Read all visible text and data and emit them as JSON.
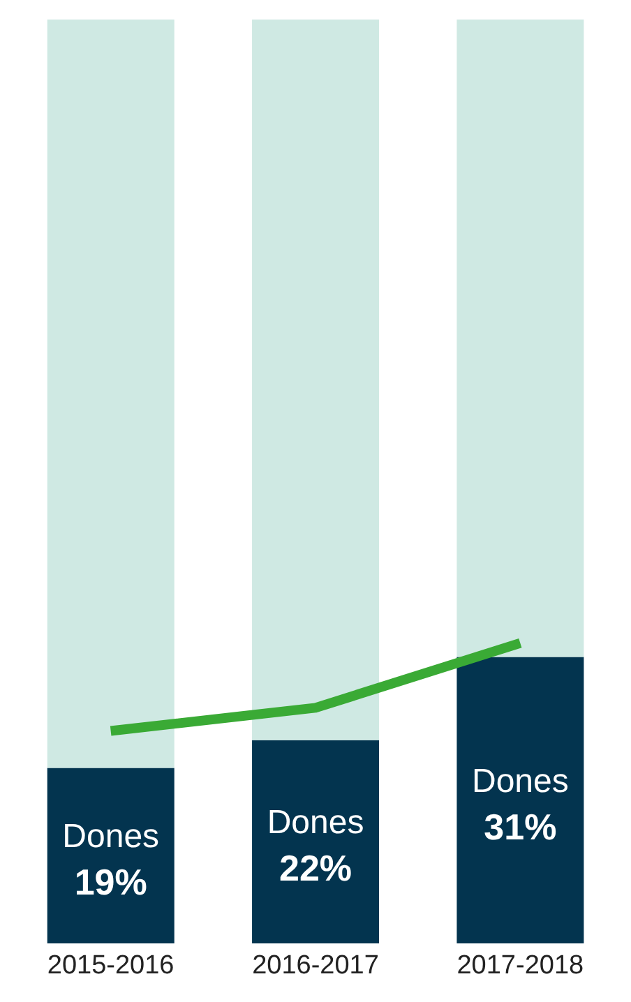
{
  "chart_data": {
    "type": "bar",
    "stacked": true,
    "categories": [
      "2015-2016",
      "2016-2017",
      "2017-2018"
    ],
    "marker": "none",
    "series": [
      {
        "name": "Dones",
        "color": "#03344f",
        "values": [
          19,
          22,
          31
        ],
        "value_labels": [
          "19%",
          "22%",
          "31%"
        ]
      },
      {
        "color": "#cfe9e3",
        "values": [
          81,
          78,
          69
        ]
      },
      {
        "type": "line",
        "color": "#3aaa35",
        "values": [
          23,
          25.5,
          32.5
        ]
      }
    ]
  }
}
